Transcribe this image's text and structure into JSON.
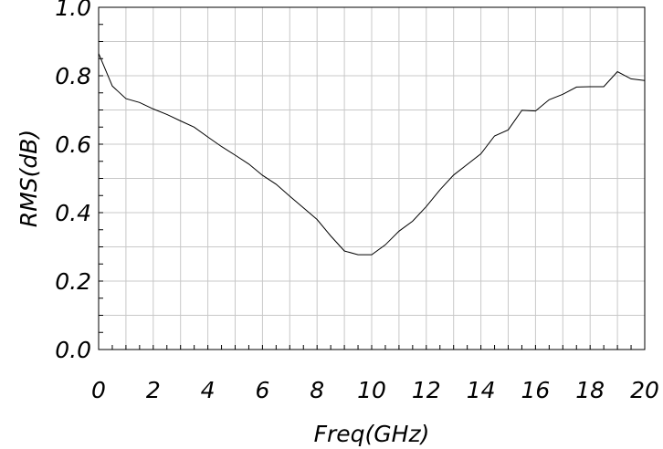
{
  "chart_data": {
    "type": "line",
    "title": "",
    "xlabel": "Freq(GHz)",
    "ylabel": "RMS(dB)",
    "xlim": [
      0,
      20
    ],
    "ylim": [
      0.0,
      1.0
    ],
    "x_ticks": [
      0,
      2,
      4,
      6,
      8,
      10,
      12,
      14,
      16,
      18,
      20
    ],
    "x_tick_labels": [
      "0",
      "2",
      "4",
      "6",
      "8",
      "10",
      "12",
      "14",
      "16",
      "18",
      "20"
    ],
    "y_ticks": [
      0.0,
      0.2,
      0.4,
      0.6,
      0.8,
      1.0
    ],
    "y_tick_labels": [
      "0.0",
      "0.2",
      "0.4",
      "0.6",
      "0.8",
      "1.0"
    ],
    "grid": true,
    "series": [
      {
        "color": "#000000",
        "x": [
          0,
          0.5,
          1,
          1.5,
          2,
          2.5,
          3,
          3.5,
          4,
          4.5,
          5,
          5.5,
          6,
          6.5,
          7,
          7.5,
          8,
          8.5,
          9,
          9.5,
          10,
          10.5,
          11,
          11.5,
          12,
          12.5,
          13,
          13.5,
          14,
          14.5,
          15,
          15.5,
          16,
          16.5,
          17,
          17.5,
          18,
          18.5,
          19,
          19.5,
          20
        ],
        "y": [
          0.865,
          0.77,
          0.733,
          0.722,
          0.703,
          0.687,
          0.668,
          0.65,
          0.621,
          0.593,
          0.568,
          0.542,
          0.509,
          0.483,
          0.448,
          0.414,
          0.38,
          0.332,
          0.288,
          0.277,
          0.277,
          0.306,
          0.346,
          0.375,
          0.418,
          0.467,
          0.51,
          0.541,
          0.572,
          0.624,
          0.642,
          0.699,
          0.697,
          0.73,
          0.746,
          0.767,
          0.768,
          0.768,
          0.812,
          0.791,
          0.786
        ]
      }
    ]
  }
}
